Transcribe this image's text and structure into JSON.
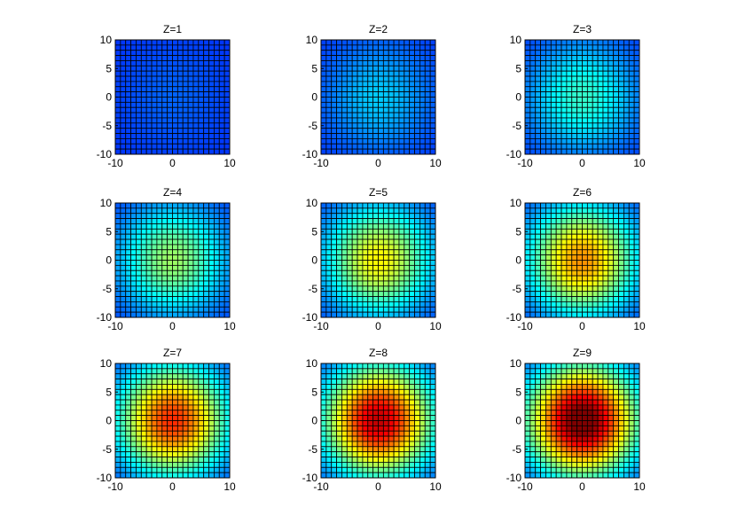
{
  "chart_data": {
    "type": "heatmap",
    "layout": "3x3 grid of subplots",
    "colormap": "jet",
    "color_range": [
      0,
      9
    ],
    "grid_cells": "22x22 cells per subplot, black cell edges",
    "field": "intensity peaks at (0,0) and falls off radially; peak level grows with Z",
    "xlim": [
      -10,
      10
    ],
    "ylim": [
      -10,
      10
    ],
    "xticks": [
      -10,
      0,
      10
    ],
    "yticks": [
      -10,
      -5,
      0,
      5,
      10
    ],
    "subplots": [
      {
        "title": "Z=1",
        "z": 1,
        "approx_max": 1.0
      },
      {
        "title": "Z=2",
        "z": 2,
        "approx_max": 2.0
      },
      {
        "title": "Z=3",
        "z": 3,
        "approx_max": 3.0
      },
      {
        "title": "Z=4",
        "z": 4,
        "approx_max": 4.0
      },
      {
        "title": "Z=5",
        "z": 5,
        "approx_max": 5.0
      },
      {
        "title": "Z=6",
        "z": 6,
        "approx_max": 6.0
      },
      {
        "title": "Z=7",
        "z": 7,
        "approx_max": 7.0
      },
      {
        "title": "Z=8",
        "z": 8,
        "approx_max": 8.0
      },
      {
        "title": "Z=9",
        "z": 9,
        "approx_max": 9.0
      }
    ]
  }
}
